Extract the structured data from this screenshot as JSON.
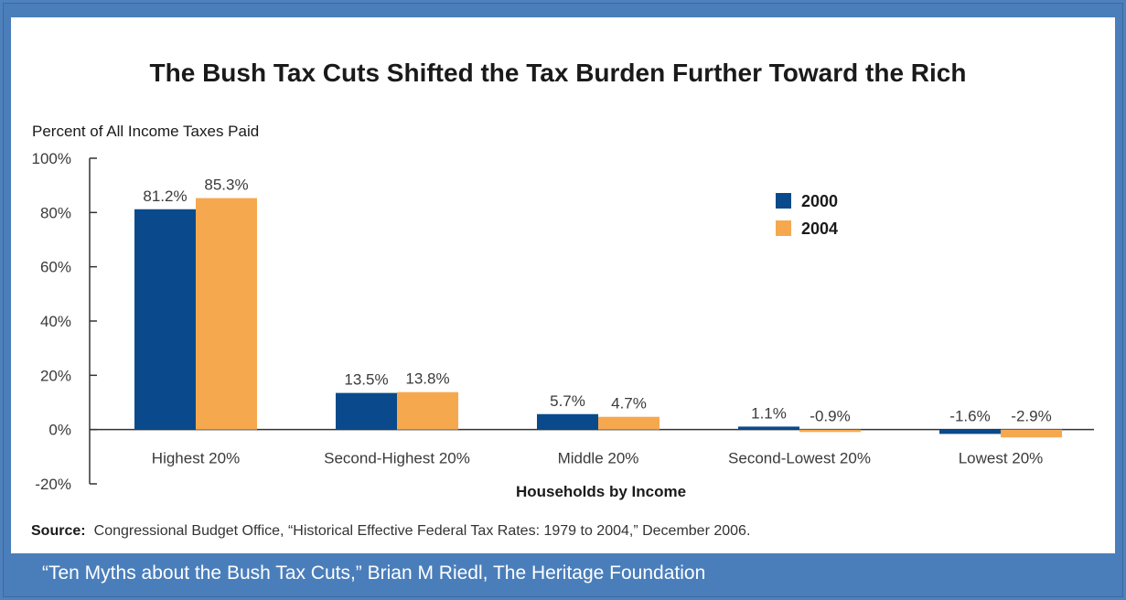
{
  "chart_data": {
    "type": "bar",
    "title": "The Bush Tax Cuts Shifted the Tax Burden Further Toward the Rich",
    "ylabel": "Percent of All Income Taxes Paid",
    "xlabel": "Households by Income",
    "ylim": [
      -20,
      100
    ],
    "yticks": [
      "100%",
      "80%",
      "60%",
      "40%",
      "20%",
      "0%",
      "-20%"
    ],
    "ytick_values": [
      100,
      80,
      60,
      40,
      20,
      0,
      -20
    ],
    "categories": [
      "Highest 20%",
      "Second-Highest 20%",
      "Middle 20%",
      "Second-Lowest 20%",
      "Lowest 20%"
    ],
    "series": [
      {
        "name": "2000",
        "color": "#0a4a8c",
        "values": [
          81.2,
          13.5,
          5.7,
          1.1,
          -1.6
        ],
        "labels": [
          "81.2%",
          "13.5%",
          "5.7%",
          "1.1%",
          "-1.6%"
        ]
      },
      {
        "name": "2004",
        "color": "#f6a84f",
        "values": [
          85.3,
          13.8,
          4.7,
          -0.9,
          -2.9
        ],
        "labels": [
          "85.3%",
          "13.8%",
          "4.7%",
          "-0.9%",
          "-2.9%"
        ]
      }
    ],
    "legend_position": "top-right",
    "grid": false
  },
  "source": {
    "label": "Source:",
    "text": "Congressional Budget Office, “Historical Effective Federal Tax Rates: 1979 to 2004,” December 2006."
  },
  "caption": "“Ten Myths about the Bush Tax Cuts,”  Brian M Riedl, The Heritage Foundation"
}
